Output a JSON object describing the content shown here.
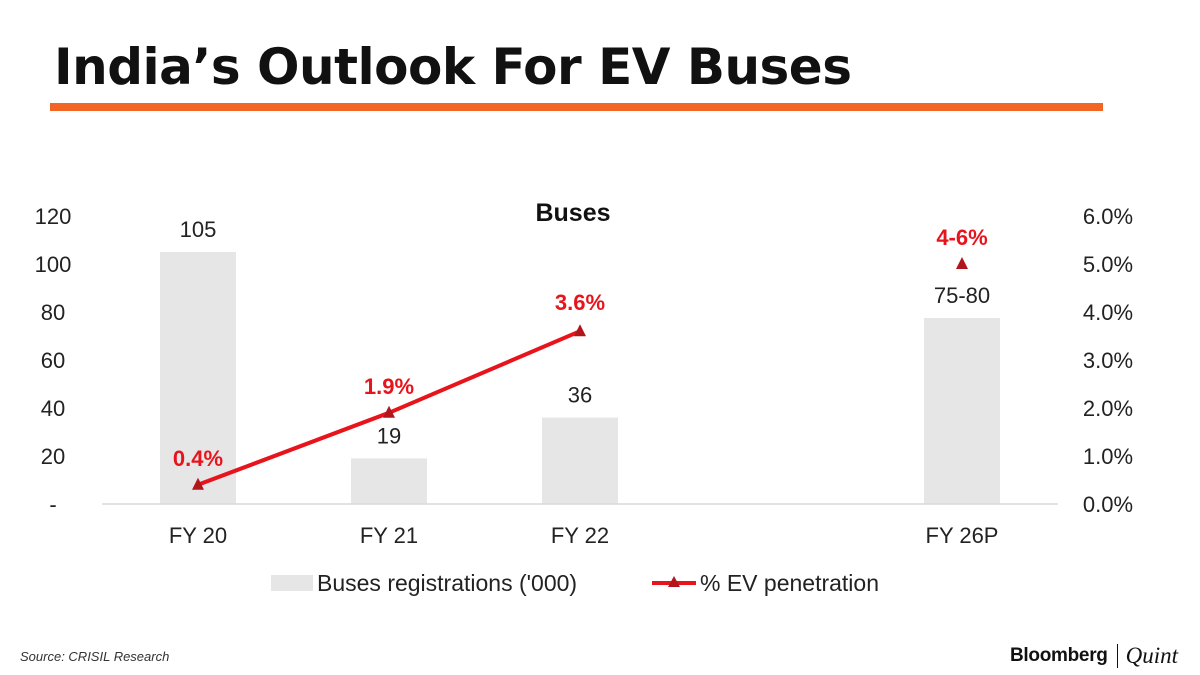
{
  "header": {
    "title": "India’s Outlook For EV Buses",
    "rule_color": "#f26524"
  },
  "chart_data": {
    "type": "bar",
    "title": "Buses",
    "categories": [
      "FY 20",
      "FY 21",
      "FY 22",
      "FY 26P"
    ],
    "y_left": {
      "ylim": [
        0,
        120
      ],
      "tick_labels": [
        "-",
        "20",
        "40",
        "60",
        "80",
        "100",
        "120"
      ]
    },
    "y_right": {
      "ylim": [
        0,
        6.0
      ],
      "tick_labels": [
        "0.0%",
        "1.0%",
        "2.0%",
        "3.0%",
        "4.0%",
        "5.0%",
        "6.0%"
      ]
    },
    "series": [
      {
        "name": "Buses registrations ('000)",
        "kind": "bar",
        "axis": "left",
        "color": "#e6e6e6",
        "values": [
          105,
          19,
          36,
          77.5
        ],
        "data_labels": [
          "105",
          "19",
          "36",
          "75-80"
        ]
      },
      {
        "name": "% EV penetration",
        "kind": "line",
        "axis": "right",
        "color": "#e8141c",
        "values": [
          0.4,
          1.9,
          3.6,
          5.0
        ],
        "data_labels": [
          "0.4%",
          "1.9%",
          "3.6%",
          "4-6%"
        ],
        "connected_points": 3
      }
    ],
    "grid": false,
    "legend_position": "bottom"
  },
  "footer": {
    "source": "Source: CRISIL Research",
    "brand_primary": "Bloomberg",
    "brand_secondary": "Quint"
  }
}
